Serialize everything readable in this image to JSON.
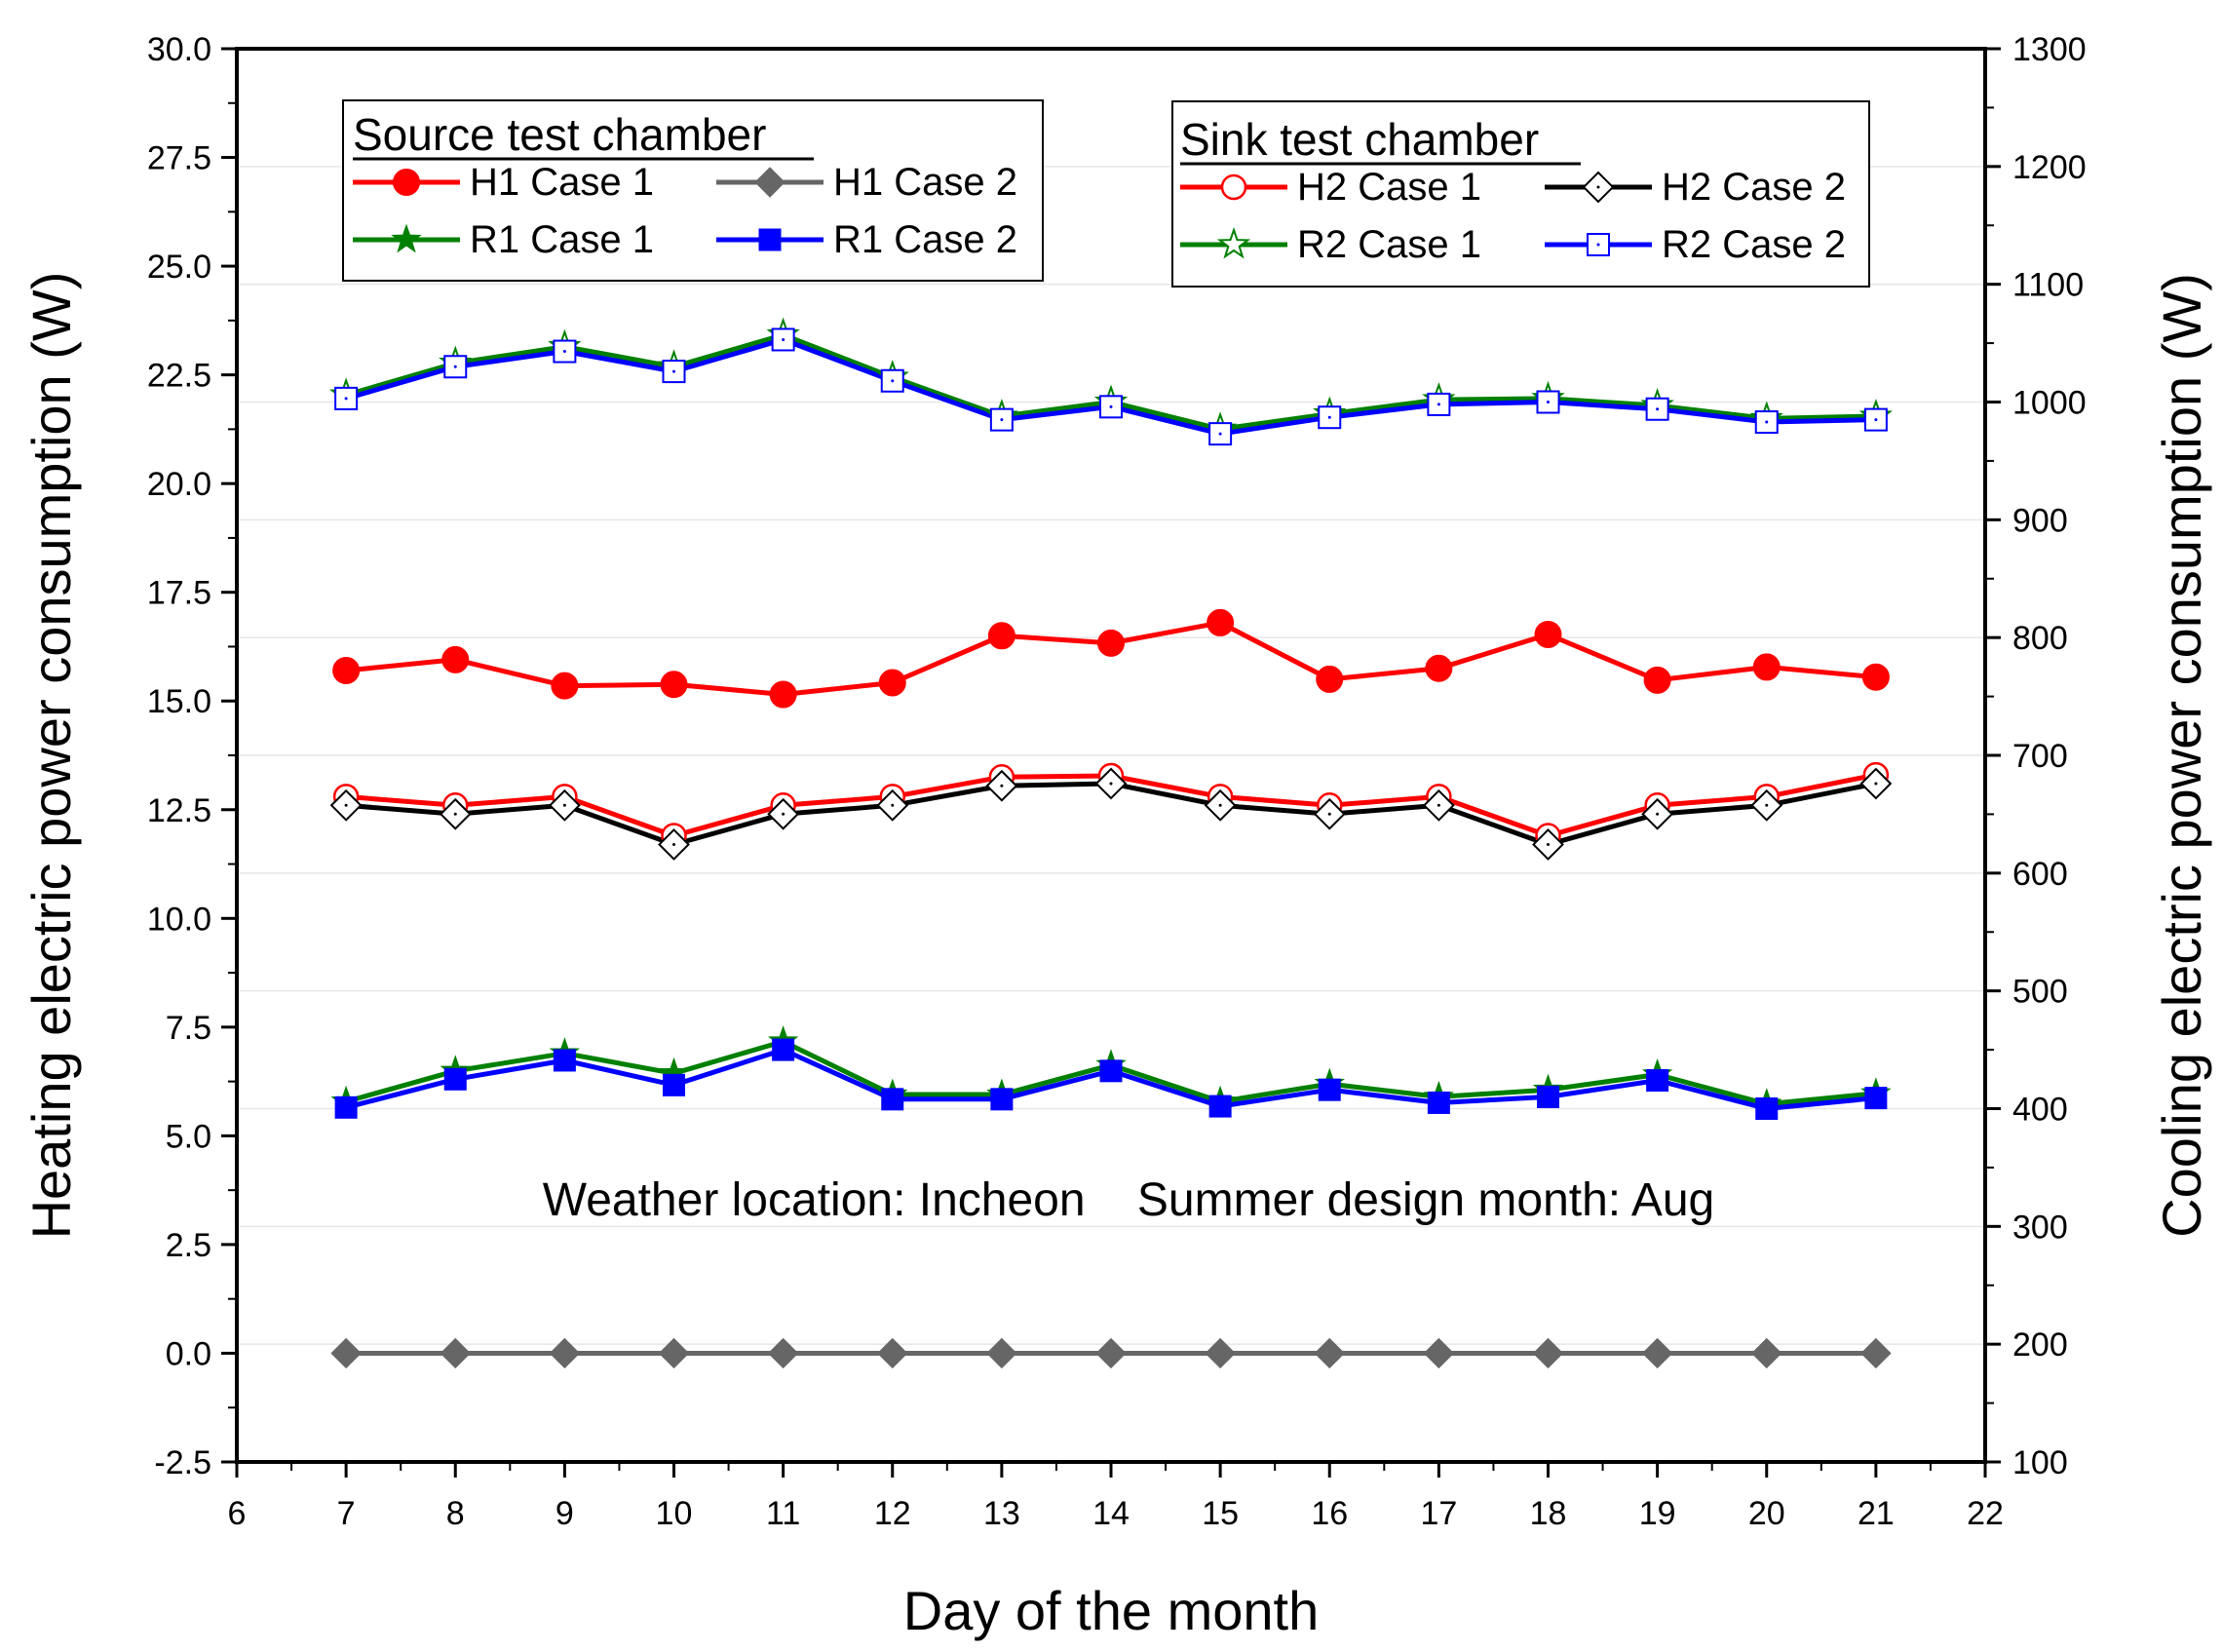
{
  "chart_data": {
    "type": "line",
    "x": [
      7,
      8,
      9,
      10,
      11,
      12,
      13,
      14,
      15,
      16,
      17,
      18,
      19,
      20,
      21
    ],
    "xlabel": "Day of the month",
    "ylabel": "Heating electric power consumption (W)",
    "y2label": "Cooling electric power consumption (W)",
    "xlim": [
      6,
      22
    ],
    "ylim": [
      -2.5,
      30.0
    ],
    "y2lim": [
      100,
      1300
    ],
    "xticks": [
      "6",
      "7",
      "8",
      "9",
      "10",
      "11",
      "12",
      "13",
      "14",
      "15",
      "16",
      "17",
      "18",
      "19",
      "20",
      "21",
      "22"
    ],
    "yticks": [
      "-2.5",
      "0.0",
      "2.5",
      "5.0",
      "7.5",
      "10.0",
      "12.5",
      "15.0",
      "17.5",
      "20.0",
      "22.5",
      "25.0",
      "27.5",
      "30.0"
    ],
    "y2ticks": [
      "100",
      "200",
      "300",
      "400",
      "500",
      "600",
      "700",
      "800",
      "900",
      "1000",
      "1100",
      "1200",
      "1300"
    ],
    "annotation": "Weather location: Incheon    Summer design month: Aug",
    "legend_groups": [
      {
        "title": "Source test chamber",
        "position": "top-left",
        "entries": [
          "H1 Case 1",
          "H1 Case 2",
          "R1 Case 1",
          "R1 Case 2"
        ]
      },
      {
        "title": "Sink test chamber",
        "position": "top-right",
        "entries": [
          "H2 Case 1",
          "H2 Case 2",
          "R2 Case 1",
          "R2 Case 2"
        ]
      }
    ],
    "series": [
      {
        "name": "H1 Case 1",
        "axis": "left",
        "color": "#ff0000",
        "marker": "circle-filled",
        "values": [
          15.7,
          15.95,
          15.35,
          15.38,
          15.15,
          15.42,
          16.5,
          16.33,
          16.8,
          15.5,
          15.75,
          16.53,
          15.48,
          15.78,
          15.55
        ]
      },
      {
        "name": "H1 Case 2",
        "axis": "left",
        "color": "#666666",
        "marker": "diamond-filled",
        "values": [
          0.0,
          0.0,
          0.0,
          0.0,
          0.0,
          0.0,
          0.0,
          0.0,
          0.0,
          0.0,
          0.0,
          0.0,
          0.0,
          0.0,
          0.0
        ]
      },
      {
        "name": "R1 Case 1",
        "axis": "right",
        "color": "#008000",
        "marker": "star-filled",
        "values": [
          406,
          432,
          447,
          430,
          457,
          412,
          412,
          437,
          406,
          421,
          410,
          416,
          429,
          404,
          413
        ]
      },
      {
        "name": "R1 Case 2",
        "axis": "right",
        "color": "#0000ff",
        "marker": "square-filled",
        "values": [
          401,
          425,
          441,
          420,
          450,
          408,
          408,
          432,
          402,
          416,
          405,
          410,
          424,
          400,
          409
        ]
      },
      {
        "name": "H2 Case 1",
        "axis": "left",
        "color": "#ff0000",
        "marker": "circle-open",
        "values": [
          12.8,
          12.6,
          12.8,
          11.9,
          12.6,
          12.8,
          13.25,
          13.28,
          12.8,
          12.6,
          12.8,
          11.9,
          12.6,
          12.8,
          13.3
        ]
      },
      {
        "name": "H2 Case 2",
        "axis": "left",
        "color": "#000000",
        "marker": "diamond-open",
        "values": [
          12.6,
          12.4,
          12.6,
          11.7,
          12.4,
          12.6,
          13.05,
          13.1,
          12.6,
          12.4,
          12.6,
          11.7,
          12.4,
          12.6,
          13.1
        ]
      },
      {
        "name": "R2 Case 1",
        "axis": "right",
        "color": "#008000",
        "marker": "star-open",
        "values": [
          1006,
          1033,
          1047,
          1030,
          1057,
          1021,
          988,
          1000,
          977,
          990,
          1002,
          1003,
          997,
          986,
          988
        ]
      },
      {
        "name": "R2 Case 2",
        "axis": "right",
        "color": "#0000ff",
        "marker": "square-open",
        "values": [
          1003,
          1030,
          1043,
          1026,
          1053,
          1018,
          985,
          996,
          973,
          987,
          998,
          1000,
          994,
          983,
          985
        ]
      }
    ]
  }
}
